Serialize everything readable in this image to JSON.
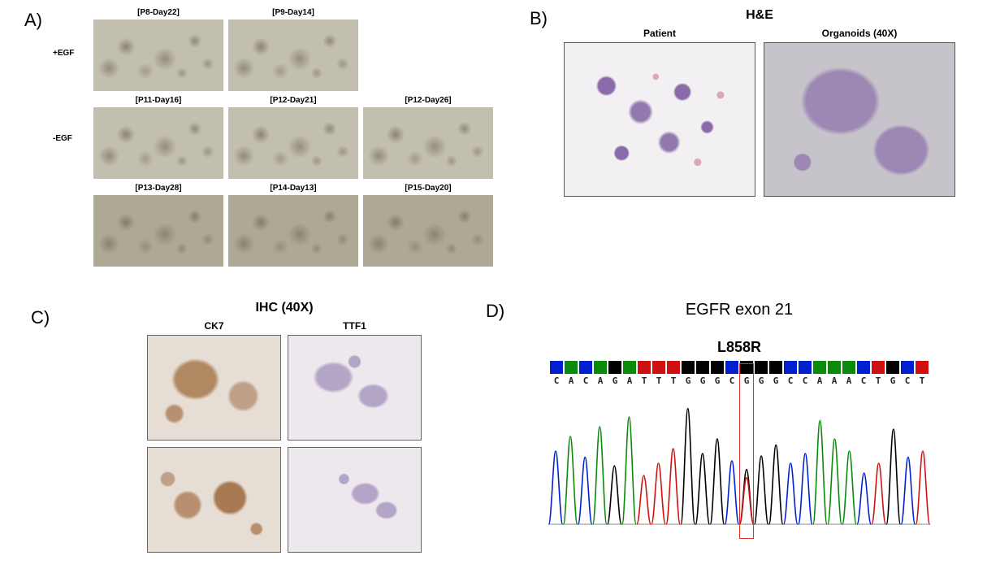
{
  "labels": {
    "A": "A)",
    "B": "B)",
    "C": "C)",
    "D": "D)"
  },
  "panelA": {
    "row_labels": {
      "plus": "+EGF",
      "minus": "-EGF"
    },
    "cells": [
      {
        "label": "[P8-Day22]",
        "tone": "light"
      },
      {
        "label": "[P9-Day14]",
        "tone": "light"
      },
      {
        "label": "",
        "tone": ""
      },
      {
        "label": "[P11-Day16]",
        "tone": "light"
      },
      {
        "label": "[P12-Day21]",
        "tone": "light"
      },
      {
        "label": "[P12-Day26]",
        "tone": "light"
      },
      {
        "label": "[P13-Day28]",
        "tone": "dark"
      },
      {
        "label": "[P14-Day13]",
        "tone": "dark"
      },
      {
        "label": "[P15-Day20]",
        "tone": "dark"
      }
    ]
  },
  "panelB": {
    "title": "H&E",
    "left_label": "Patient",
    "right_label": "Organoids (40X)"
  },
  "panelC": {
    "title": "IHC (40X)",
    "left_label": "CK7",
    "right_label": "TTF1"
  },
  "panelD": {
    "title": "EGFR exon 21",
    "mutation": "L858R",
    "sequence": [
      "C",
      "A",
      "C",
      "A",
      "G",
      "A",
      "T",
      "T",
      "T",
      "G",
      "G",
      "G",
      "C",
      "G",
      "G",
      "G",
      "C",
      "C",
      "A",
      "A",
      "A",
      "C",
      "T",
      "G",
      "C",
      "T"
    ],
    "base_colors": {
      "A": "#0a8a0a",
      "C": "#0020d0",
      "G": "#000000",
      "T": "#d01010"
    },
    "mutation_index": 13,
    "peak_heights": [
      60,
      72,
      55,
      80,
      48,
      88,
      40,
      50,
      62,
      95,
      58,
      70,
      52,
      45,
      56,
      65,
      50,
      58,
      85,
      70,
      60,
      42,
      50,
      78,
      55,
      60
    ],
    "trace_height": 160,
    "trace_width": 470
  }
}
